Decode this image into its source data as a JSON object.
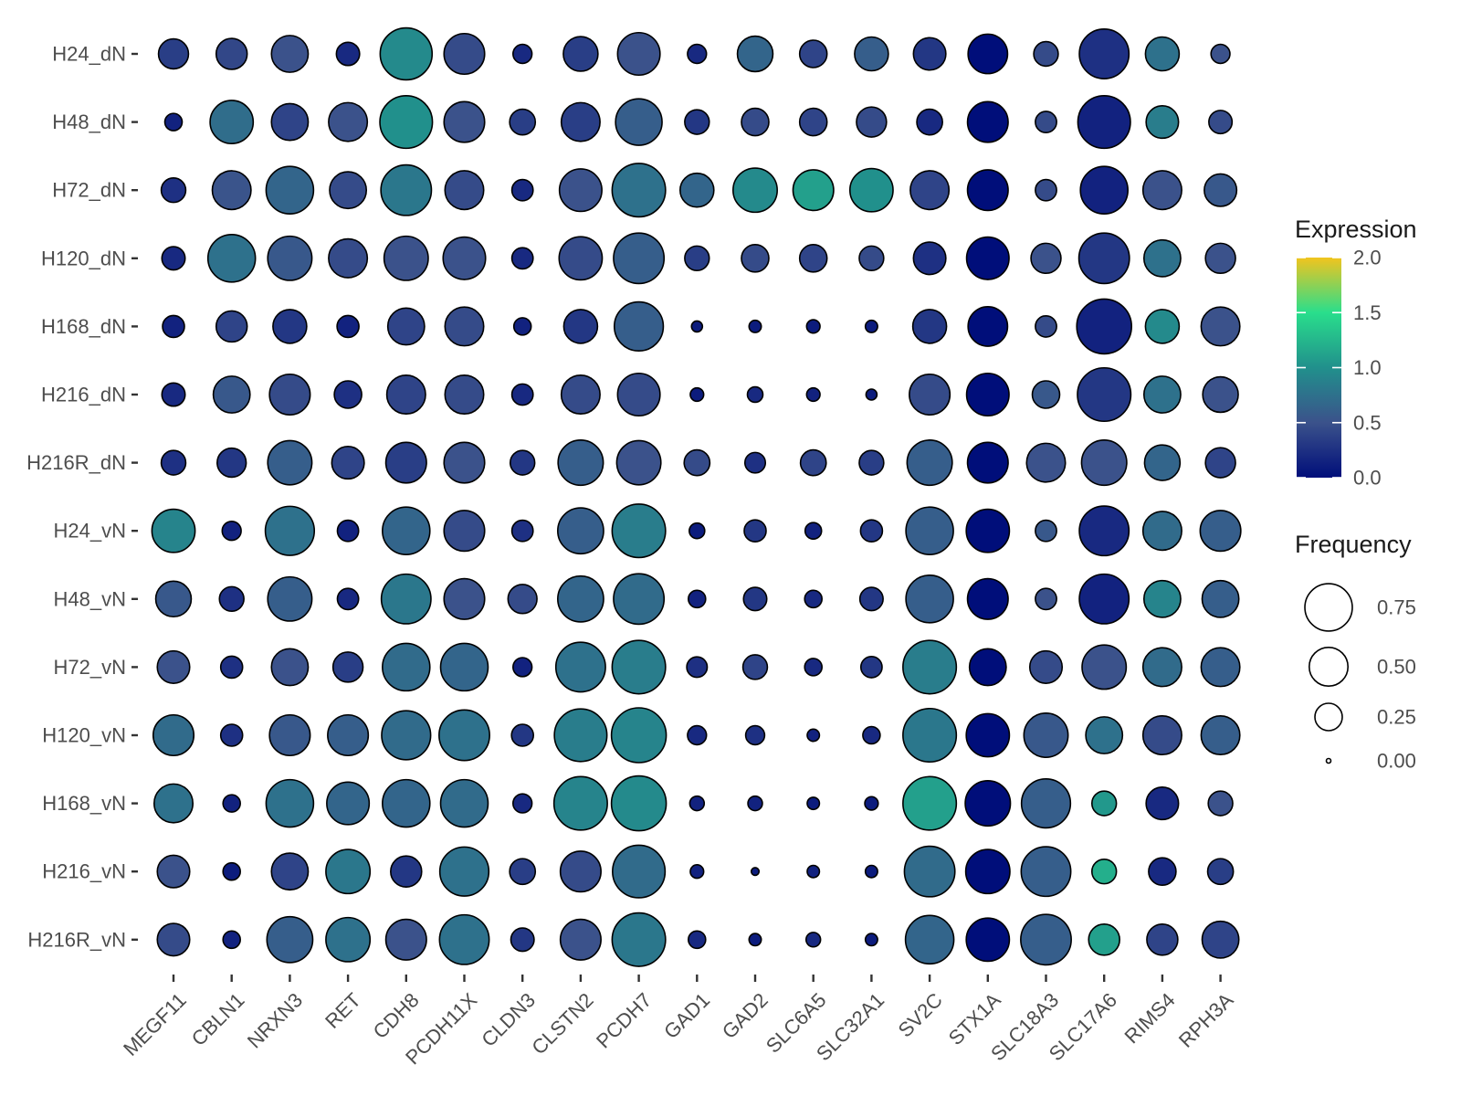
{
  "chart_data": {
    "type": "dot",
    "rows": [
      "H24_dN",
      "H48_dN",
      "H72_dN",
      "H120_dN",
      "H168_dN",
      "H216_dN",
      "H216R_dN",
      "H24_vN",
      "H48_vN",
      "H72_vN",
      "H120_vN",
      "H168_vN",
      "H216_vN",
      "H216R_vN"
    ],
    "columns": [
      "MEGF11",
      "CBLN1",
      "NRXN3",
      "RET",
      "CDH8",
      "PCDH11X",
      "CLDN3",
      "CLSTN2",
      "PCDH7",
      "GAD1",
      "GAD2",
      "SLC6A5",
      "SLC32A1",
      "SV2C",
      "STX1A",
      "SLC18A3",
      "SLC17A6",
      "RIMS4",
      "RPH3A"
    ],
    "expression": [
      [
        0.35,
        0.42,
        0.5,
        0.2,
        0.95,
        0.45,
        0.2,
        0.35,
        0.5,
        0.2,
        0.65,
        0.4,
        0.6,
        0.3,
        0.0,
        0.45,
        0.25,
        0.75,
        0.5
      ],
      [
        0.15,
        0.72,
        0.4,
        0.5,
        1.0,
        0.5,
        0.35,
        0.35,
        0.6,
        0.3,
        0.45,
        0.4,
        0.45,
        0.2,
        0.0,
        0.45,
        0.15,
        0.85,
        0.45
      ],
      [
        0.25,
        0.52,
        0.65,
        0.45,
        0.8,
        0.45,
        0.2,
        0.5,
        0.75,
        0.65,
        0.95,
        1.1,
        1.0,
        0.4,
        0.0,
        0.45,
        0.15,
        0.5,
        0.55
      ],
      [
        0.2,
        0.75,
        0.55,
        0.45,
        0.5,
        0.5,
        0.2,
        0.45,
        0.6,
        0.35,
        0.45,
        0.4,
        0.45,
        0.25,
        0.0,
        0.5,
        0.3,
        0.75,
        0.5
      ],
      [
        0.15,
        0.4,
        0.3,
        0.15,
        0.4,
        0.45,
        0.15,
        0.3,
        0.6,
        0.1,
        0.1,
        0.1,
        0.1,
        0.3,
        0.0,
        0.45,
        0.15,
        0.95,
        0.5
      ],
      [
        0.2,
        0.55,
        0.45,
        0.25,
        0.4,
        0.45,
        0.2,
        0.45,
        0.45,
        0.1,
        0.2,
        0.15,
        0.1,
        0.45,
        0.0,
        0.55,
        0.3,
        0.75,
        0.5
      ],
      [
        0.25,
        0.3,
        0.6,
        0.4,
        0.35,
        0.5,
        0.3,
        0.6,
        0.5,
        0.45,
        0.25,
        0.4,
        0.35,
        0.6,
        0.0,
        0.5,
        0.5,
        0.65,
        0.4
      ],
      [
        0.9,
        0.15,
        0.75,
        0.15,
        0.65,
        0.45,
        0.25,
        0.6,
        0.85,
        0.1,
        0.3,
        0.15,
        0.3,
        0.6,
        0.0,
        0.55,
        0.2,
        0.7,
        0.6
      ],
      [
        0.55,
        0.25,
        0.6,
        0.2,
        0.8,
        0.5,
        0.45,
        0.65,
        0.7,
        0.15,
        0.3,
        0.2,
        0.3,
        0.6,
        0.0,
        0.5,
        0.15,
        0.9,
        0.6
      ],
      [
        0.5,
        0.25,
        0.5,
        0.35,
        0.7,
        0.65,
        0.15,
        0.75,
        0.85,
        0.25,
        0.4,
        0.2,
        0.3,
        0.85,
        0.0,
        0.45,
        0.5,
        0.7,
        0.6
      ],
      [
        0.7,
        0.25,
        0.55,
        0.6,
        0.7,
        0.75,
        0.3,
        0.85,
        0.9,
        0.2,
        0.25,
        0.15,
        0.2,
        0.8,
        0.0,
        0.55,
        0.75,
        0.45,
        0.6
      ],
      [
        0.75,
        0.15,
        0.75,
        0.65,
        0.65,
        0.7,
        0.2,
        0.9,
        0.95,
        0.15,
        0.15,
        0.1,
        0.1,
        1.1,
        0.0,
        0.6,
        1.05,
        0.2,
        0.5
      ],
      [
        0.5,
        0.1,
        0.4,
        0.8,
        0.3,
        0.75,
        0.35,
        0.45,
        0.7,
        0.15,
        0.1,
        0.15,
        0.1,
        0.7,
        0.0,
        0.6,
        1.2,
        0.2,
        0.35
      ],
      [
        0.45,
        0.15,
        0.6,
        0.75,
        0.5,
        0.75,
        0.3,
        0.5,
        0.8,
        0.2,
        0.1,
        0.2,
        0.1,
        0.65,
        0.0,
        0.6,
        1.1,
        0.4,
        0.4
      ]
    ],
    "frequency": [
      [
        0.3,
        0.32,
        0.45,
        0.18,
        0.9,
        0.55,
        0.12,
        0.4,
        0.6,
        0.12,
        0.42,
        0.25,
        0.38,
        0.35,
        0.52,
        0.2,
        0.82,
        0.38,
        0.12
      ],
      [
        0.1,
        0.62,
        0.45,
        0.5,
        0.92,
        0.55,
        0.22,
        0.5,
        0.72,
        0.2,
        0.25,
        0.25,
        0.3,
        0.22,
        0.55,
        0.15,
        0.92,
        0.35,
        0.18
      ],
      [
        0.2,
        0.5,
        0.75,
        0.45,
        0.85,
        0.5,
        0.15,
        0.6,
        0.95,
        0.38,
        0.65,
        0.55,
        0.62,
        0.5,
        0.55,
        0.15,
        0.75,
        0.5,
        0.35
      ],
      [
        0.18,
        0.75,
        0.65,
        0.5,
        0.65,
        0.6,
        0.15,
        0.62,
        0.85,
        0.2,
        0.25,
        0.25,
        0.2,
        0.35,
        0.6,
        0.3,
        0.85,
        0.45,
        0.3
      ],
      [
        0.16,
        0.32,
        0.38,
        0.16,
        0.45,
        0.5,
        0.1,
        0.38,
        0.8,
        0.04,
        0.05,
        0.06,
        0.05,
        0.38,
        0.52,
        0.15,
        1.0,
        0.38,
        0.5
      ],
      [
        0.18,
        0.45,
        0.55,
        0.25,
        0.5,
        0.5,
        0.15,
        0.5,
        0.6,
        0.06,
        0.08,
        0.06,
        0.04,
        0.55,
        0.6,
        0.25,
        0.95,
        0.45,
        0.42
      ],
      [
        0.2,
        0.28,
        0.65,
        0.35,
        0.55,
        0.55,
        0.2,
        0.68,
        0.65,
        0.22,
        0.14,
        0.22,
        0.2,
        0.68,
        0.55,
        0.5,
        0.68,
        0.42,
        0.3
      ],
      [
        0.62,
        0.12,
        0.8,
        0.15,
        0.75,
        0.55,
        0.15,
        0.7,
        0.95,
        0.08,
        0.16,
        0.09,
        0.16,
        0.75,
        0.62,
        0.15,
        0.82,
        0.5,
        0.55
      ],
      [
        0.42,
        0.2,
        0.65,
        0.15,
        0.82,
        0.55,
        0.28,
        0.7,
        0.85,
        0.1,
        0.18,
        0.1,
        0.18,
        0.75,
        0.55,
        0.15,
        0.82,
        0.45,
        0.45
      ],
      [
        0.35,
        0.16,
        0.45,
        0.3,
        0.75,
        0.75,
        0.12,
        0.82,
        0.95,
        0.14,
        0.2,
        0.1,
        0.15,
        0.95,
        0.45,
        0.35,
        0.65,
        0.5,
        0.5
      ],
      [
        0.55,
        0.16,
        0.55,
        0.55,
        0.8,
        0.85,
        0.16,
        0.92,
        1.0,
        0.12,
        0.12,
        0.05,
        0.1,
        0.95,
        0.62,
        0.65,
        0.45,
        0.5,
        0.5
      ],
      [
        0.5,
        0.1,
        0.75,
        0.6,
        0.75,
        0.75,
        0.12,
        0.95,
        1.0,
        0.07,
        0.07,
        0.05,
        0.06,
        0.95,
        0.68,
        0.8,
        0.2,
        0.35,
        0.2
      ],
      [
        0.35,
        0.1,
        0.45,
        0.65,
        0.32,
        0.8,
        0.22,
        0.55,
        0.92,
        0.06,
        0.02,
        0.05,
        0.05,
        0.85,
        0.65,
        0.82,
        0.2,
        0.25,
        0.22
      ],
      [
        0.35,
        0.1,
        0.7,
        0.65,
        0.55,
        0.82,
        0.18,
        0.55,
        0.95,
        0.1,
        0.05,
        0.07,
        0.05,
        0.78,
        0.62,
        0.85,
        0.32,
        0.32,
        0.45
      ]
    ],
    "color_scale": {
      "title": "Expression",
      "range": [
        0,
        2
      ],
      "ticks": [
        "0.0",
        "0.5",
        "1.0",
        "1.5",
        "2.0"
      ],
      "tick_values": [
        0,
        0.5,
        1.0,
        1.5,
        2.0
      ],
      "stops": [
        "#000E7A",
        "#3B528B",
        "#21908C",
        "#29DE8C",
        "#F1C41E"
      ]
    },
    "size_scale": {
      "title": "Frequency",
      "keys": [
        "0.75",
        "0.50",
        "0.25",
        "0.00"
      ],
      "key_values": [
        0.75,
        0.5,
        0.25,
        0.0
      ]
    },
    "grid": false,
    "legend_position": "right"
  }
}
